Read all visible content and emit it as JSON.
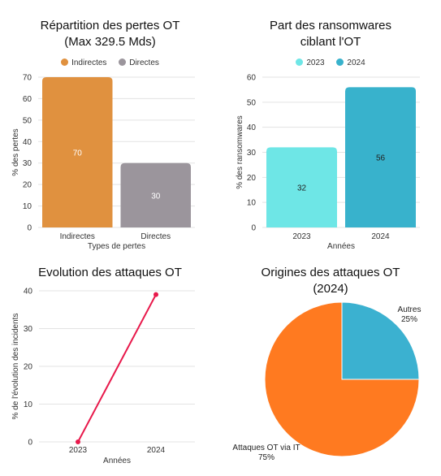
{
  "chart_data": [
    {
      "type": "bar",
      "title": "Répartition des pertes OT",
      "subtitle": "(Max 329.5 Mds)",
      "xlabel": "Types de pertes",
      "ylabel": "% des pertes",
      "categories": [
        "Indirectes",
        "Directes"
      ],
      "values": [
        70,
        30
      ],
      "legend": [
        "Indirectes",
        "Directes"
      ],
      "colors": [
        "#e0913f",
        "#9b959c"
      ],
      "ylim": [
        0,
        70
      ],
      "yticks": [
        "0",
        "10",
        "20",
        "30",
        "40",
        "50",
        "60",
        "70"
      ],
      "data_labels": [
        "70",
        "30"
      ],
      "legend_position": "top",
      "grid": true
    },
    {
      "type": "bar",
      "title": "Part des ransomwares",
      "subtitle": "ciblant l'OT",
      "xlabel": "Années",
      "ylabel": "% des ransomwares",
      "categories": [
        "2023",
        "2024"
      ],
      "values": [
        32,
        56
      ],
      "legend": [
        "2023",
        "2024"
      ],
      "colors": [
        "#6ee6e6",
        "#38b2cc"
      ],
      "ylim": [
        0,
        60
      ],
      "yticks": [
        "0",
        "10",
        "20",
        "30",
        "40",
        "50",
        "60"
      ],
      "data_labels": [
        "32",
        "56"
      ],
      "legend_position": "top",
      "grid": true
    },
    {
      "type": "line",
      "title": "Evolution des attaques OT",
      "xlabel": "Années",
      "ylabel": "% de l'évolution des incidents",
      "categories": [
        "2023",
        "2024"
      ],
      "values": [
        0,
        39
      ],
      "color": "#e8194b",
      "ylim": [
        0,
        40
      ],
      "yticks": [
        "0",
        "10",
        "20",
        "30",
        "40"
      ],
      "grid": true
    },
    {
      "type": "pie",
      "title": "Origines des attaques OT",
      "subtitle": "(2024)",
      "labels": [
        "Autres",
        "Attaques OT via IT"
      ],
      "values": [
        25,
        75
      ],
      "value_labels": [
        "25%",
        "75%"
      ],
      "colors": [
        "#3bb1d0",
        "#ff7a20"
      ]
    }
  ]
}
